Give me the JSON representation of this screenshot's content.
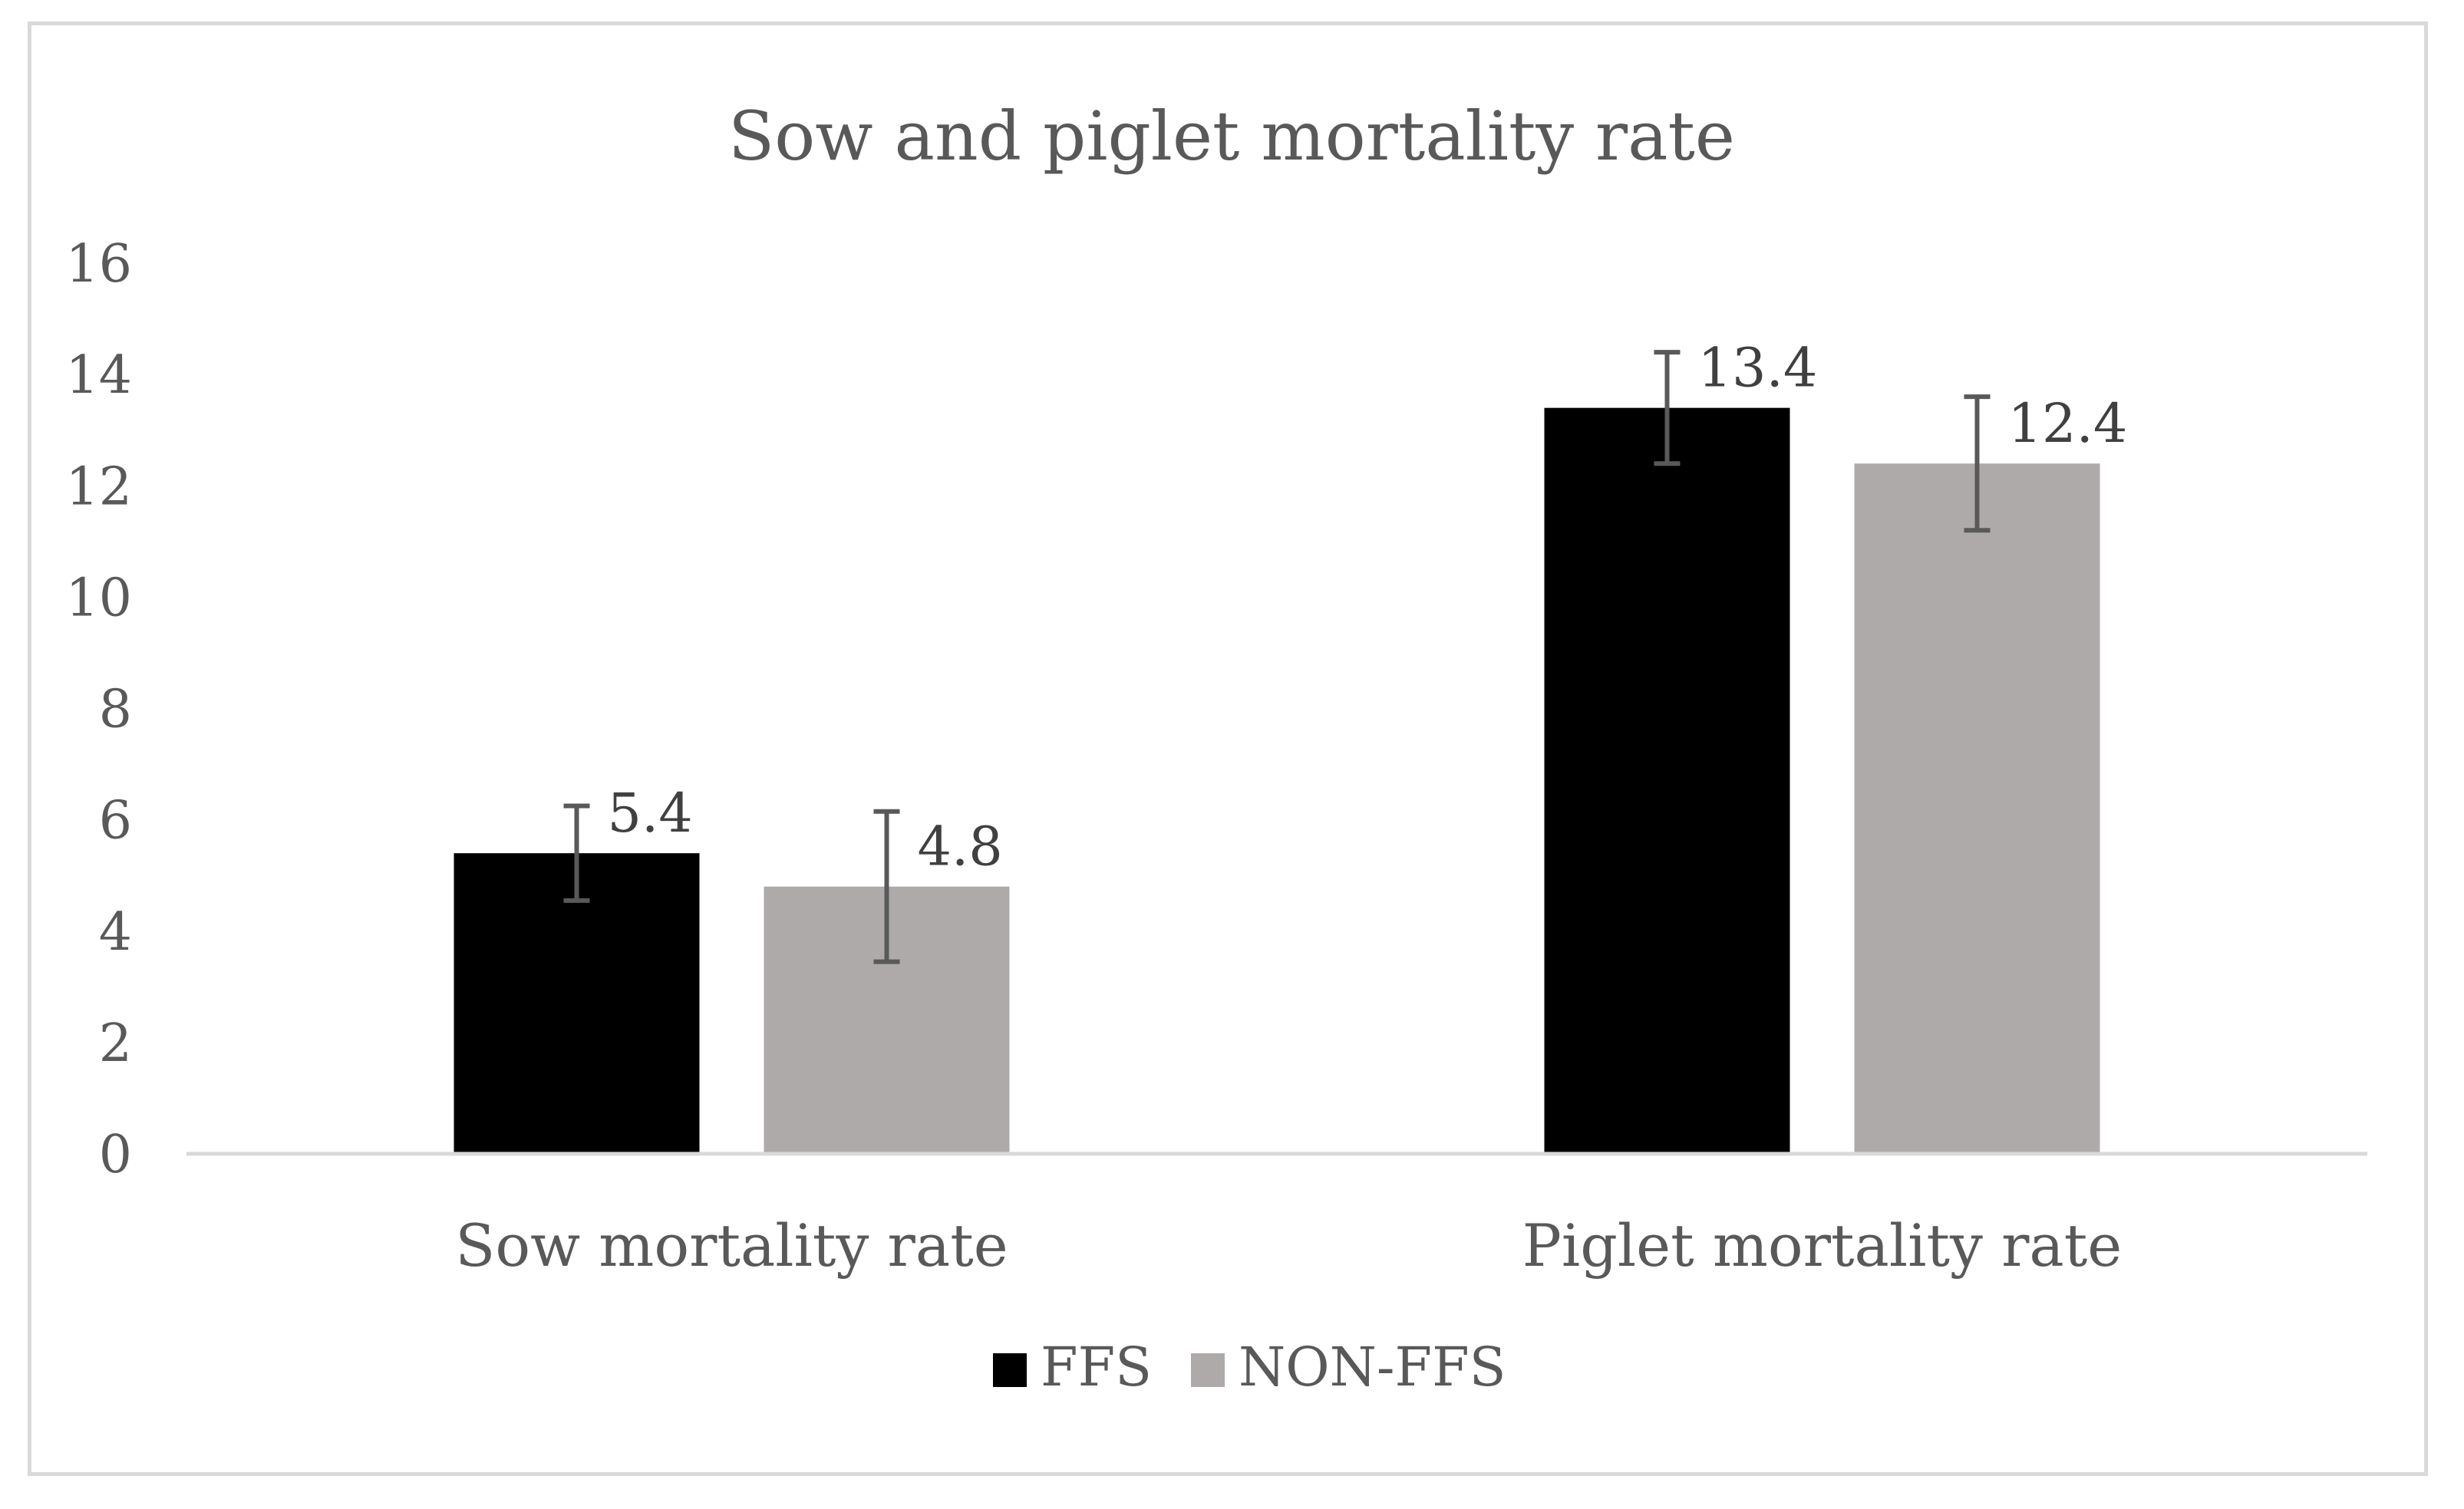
{
  "chart_data": {
    "type": "bar",
    "title": "Sow and piglet mortality rate",
    "categories": [
      "Sow mortality rate",
      "Piglet mortality rate"
    ],
    "series": [
      {
        "name": "FFS",
        "color": "#000000",
        "values": [
          5.4,
          13.4
        ],
        "labels": [
          "5.4",
          "13.4"
        ],
        "error": [
          0.85,
          1.0
        ]
      },
      {
        "name": "NON-FFS",
        "color": "#aeaaaa",
        "values": [
          4.8,
          12.4
        ],
        "labels": [
          "4.8",
          "12.4"
        ],
        "error": [
          1.35,
          1.2
        ]
      }
    ],
    "ylim": [
      0,
      16
    ],
    "yticks": [
      0,
      2,
      4,
      6,
      8,
      10,
      12,
      14,
      16
    ],
    "ytick_labels": [
      "0",
      "2",
      "4",
      "6",
      "8",
      "10",
      "12",
      "14",
      "16"
    ],
    "xlabel": "",
    "ylabel": "",
    "grid": false,
    "legend_position": "bottom",
    "axis_color": "#d9d9d9",
    "errorbar_color": "#595959"
  }
}
